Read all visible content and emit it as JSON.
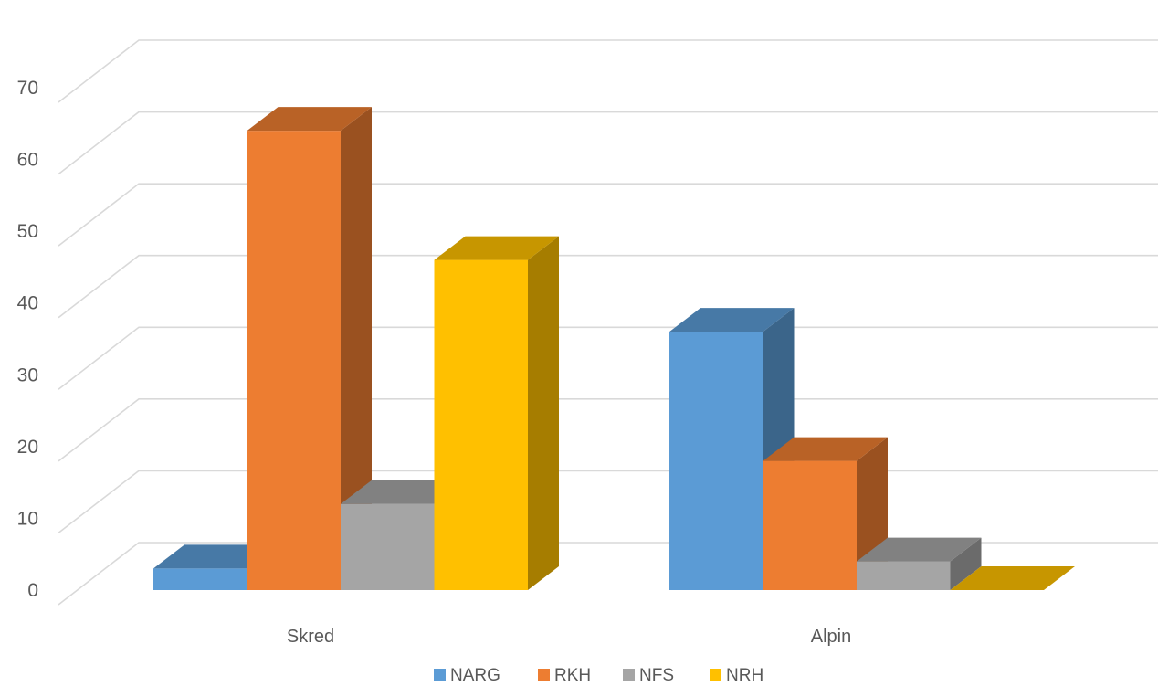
{
  "chart_data": {
    "type": "bar",
    "title": "",
    "xlabel": "",
    "ylabel": "",
    "ylim": [
      0,
      70
    ],
    "yticks": [
      0,
      10,
      20,
      30,
      40,
      50,
      60,
      70
    ],
    "grid": true,
    "legend_position": "bottom",
    "categories": [
      "Skred",
      "Alpin"
    ],
    "series": [
      {
        "name": "NARG",
        "values": [
          3,
          36
        ],
        "color": "#5B9BD5"
      },
      {
        "name": "RKH",
        "values": [
          64,
          18
        ],
        "color": "#ED7D31"
      },
      {
        "name": "NFS",
        "values": [
          12,
          4
        ],
        "color": "#A5A5A5"
      },
      {
        "name": "NRH",
        "values": [
          46,
          0
        ],
        "color": "#FFC000"
      }
    ]
  }
}
